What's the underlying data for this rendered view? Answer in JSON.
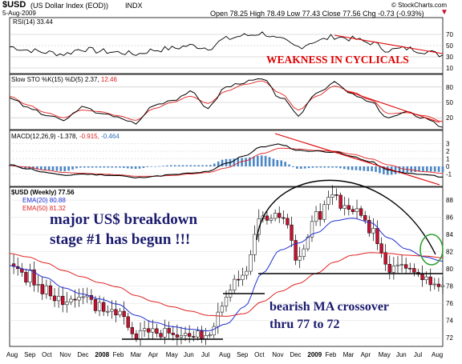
{
  "header": {
    "symbol": "$USD",
    "name": "(US Dollar Index (EOD))",
    "exchange": "INDX",
    "date": "5-Aug-2009",
    "quote": "Open 78.25  High 78.49  Low 77.43  Close 77.56  Chg -0.73 (-0.93%)",
    "quote_arrow": "▼",
    "watermark": "© StockCharts.com"
  },
  "rsi": {
    "label": "RSI(14) 33.44",
    "ticks": [
      "70",
      "50",
      "30",
      "10"
    ]
  },
  "sto": {
    "label_a": "Slow STO %K(15) %D(5) 2.37,",
    "label_b": "12.46",
    "ticks": [
      "80",
      "50",
      "20"
    ]
  },
  "macd": {
    "label_a": "MACD(12,26,9) -1.378,",
    "label_b": "-0.915,",
    "label_c": "-0.464",
    "ticks": [
      "3",
      "2",
      "1",
      "0",
      "-1"
    ]
  },
  "price": {
    "label": "$USD (Weekly) 77.56",
    "ema20": "EMA(20) 80.88",
    "ema50": "EMA(50) 81.32",
    "ticks": [
      "88",
      "86",
      "84",
      "82",
      "80",
      "78",
      "76",
      "74",
      "72"
    ]
  },
  "annotations": {
    "cyclicals": "WEAKNESS IN CYCLICALS",
    "breakdown1": "major US$ breakdown",
    "breakdown2": "stage #1 has begun !!!",
    "crossover1": "bearish MA crossover",
    "crossover2": "thru 77 to 72"
  },
  "xaxis": [
    "Aug",
    "Sep",
    "Oct",
    "Nov",
    "Dec",
    "2008",
    "Feb",
    "Mar",
    "Apr",
    "May",
    "Jun",
    "Jul",
    "Aug",
    "Sep",
    "Oct",
    "Nov",
    "Dec",
    "2009",
    "Feb",
    "Mar",
    "Apr",
    "May",
    "Jun",
    "Jul",
    "Aug"
  ],
  "colors": {
    "up": "#ffffff",
    "down": "#c8102e",
    "ema20": "#1f2fd1",
    "ema50": "#e02020",
    "macdhist": "#4a86c6",
    "annotation": "#e00000",
    "navy": "#1a1a6e",
    "circle": "#2e9e2e"
  },
  "chart_data": {
    "type": "candlestick",
    "title": "$USD (US Dollar Index (EOD)) INDX",
    "x": [
      "Aug 2007",
      "Sep 2007",
      "Oct 2007",
      "Nov 2007",
      "Dec 2007",
      "Jan 2008",
      "Feb 2008",
      "Mar 2008",
      "Apr 2008",
      "May 2008",
      "Jun 2008",
      "Jul 2008",
      "Aug 2008",
      "Sep 2008",
      "Oct 2008",
      "Nov 2008",
      "Dec 2008",
      "Jan 2009",
      "Feb 2009",
      "Mar 2009",
      "Apr 2009",
      "May 2009",
      "Jun 2009",
      "Jul 2009",
      "Aug 2009"
    ],
    "series": [
      {
        "name": "$USD (Weekly) 77.56",
        "values": [
          80.6,
          79.2,
          77.6,
          75.9,
          76.4,
          75.6,
          75.0,
          72.5,
          72.7,
          72.7,
          72.8,
          72.4,
          76.9,
          79.6,
          86.0,
          86.5,
          81.0,
          86.0,
          88.2,
          86.5,
          84.6,
          80.1,
          80.0,
          78.8,
          77.6
        ]
      },
      {
        "name": "EMA(20) 80.88",
        "values": [
          80.4,
          79.9,
          79.0,
          77.8,
          77.1,
          76.5,
          75.9,
          74.6,
          73.8,
          73.3,
          73.0,
          72.8,
          73.6,
          75.6,
          79.5,
          82.2,
          83.0,
          84.2,
          85.6,
          85.9,
          85.4,
          83.6,
          82.3,
          81.4,
          80.9
        ]
      },
      {
        "name": "EMA(50) 81.32",
        "values": [
          81.8,
          81.4,
          80.7,
          79.8,
          79.1,
          78.4,
          77.9,
          76.9,
          76.2,
          75.6,
          75.1,
          74.6,
          74.5,
          74.8,
          76.2,
          77.4,
          78.3,
          79.5,
          80.8,
          81.6,
          81.9,
          81.8,
          81.6,
          81.5,
          81.3
        ]
      }
    ],
    "ylim": [
      71,
      89.5
    ],
    "rsi": {
      "name": "RSI(14) 33.44",
      "values": [
        48,
        42,
        38,
        35,
        44,
        40,
        38,
        35,
        42,
        45,
        50,
        46,
        62,
        68,
        72,
        60,
        48,
        58,
        66,
        62,
        55,
        42,
        45,
        40,
        33
      ]
    },
    "stochastic": {
      "k_values": [
        60,
        40,
        25,
        15,
        40,
        30,
        20,
        10,
        45,
        55,
        70,
        40,
        80,
        90,
        95,
        60,
        25,
        70,
        88,
        65,
        50,
        20,
        30,
        20,
        2.37
      ],
      "d_values": [
        62,
        45,
        30,
        20,
        35,
        32,
        24,
        15,
        38,
        50,
        62,
        48,
        72,
        85,
        92,
        68,
        35,
        62,
        82,
        70,
        55,
        28,
        30,
        24,
        12.46
      ]
    },
    "macd": {
      "values": [
        0.2,
        -0.3,
        -0.8,
        -1.2,
        -1.0,
        -1.1,
        -1.2,
        -1.5,
        -1.3,
        -1.1,
        -0.9,
        -0.7,
        0.4,
        1.4,
        2.6,
        2.9,
        2.1,
        2.0,
        1.9,
        1.3,
        0.6,
        -0.5,
        -0.9,
        -1.1,
        -1.378
      ],
      "signal": [
        0.1,
        -0.1,
        -0.5,
        -0.8,
        -0.9,
        -1.0,
        -1.1,
        -1.3,
        -1.3,
        -1.2,
        -1.0,
        -0.8,
        -0.2,
        0.7,
        1.7,
        2.4,
        2.3,
        2.1,
        2.0,
        1.6,
        1.0,
        0.2,
        -0.4,
        -0.7,
        -0.915
      ],
      "histogram": [
        0.1,
        -0.2,
        -0.3,
        -0.4,
        -0.1,
        -0.1,
        -0.1,
        -0.2,
        0.0,
        0.1,
        0.1,
        0.1,
        0.6,
        0.7,
        0.9,
        0.5,
        -0.2,
        -0.1,
        -0.1,
        -0.3,
        -0.4,
        -0.7,
        -0.5,
        -0.4,
        -0.464
      ]
    }
  }
}
